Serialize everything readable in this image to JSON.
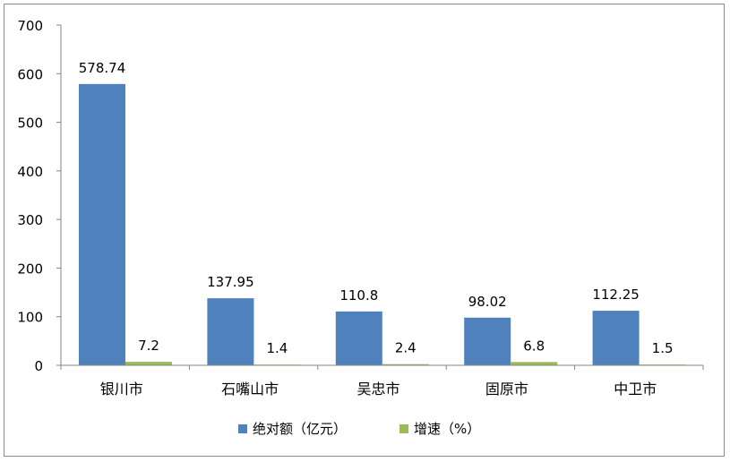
{
  "chart_data": {
    "type": "bar",
    "categories": [
      "银川市",
      "石嘴山市",
      "吴忠市",
      "固原市",
      "中卫市"
    ],
    "series": [
      {
        "name": "绝对额（亿元）",
        "values": [
          578.74,
          137.95,
          110.8,
          98.02,
          112.25
        ],
        "labels": [
          "578.74",
          "137.95",
          "110.8",
          "98.02",
          "112.25"
        ],
        "color": "#4f81bd"
      },
      {
        "name": "增速（%）",
        "values": [
          7.2,
          1.4,
          2.4,
          6.8,
          1.5
        ],
        "labels": [
          "7.2",
          "1.4",
          "2.4",
          "6.8",
          "1.5"
        ],
        "color": "#9bbb59"
      }
    ],
    "ylim": [
      0,
      700
    ],
    "yticks": [
      0,
      100,
      200,
      300,
      400,
      500,
      600,
      700
    ],
    "title": "",
    "xlabel": "",
    "ylabel": "",
    "grid": false,
    "legend_position": "bottom",
    "axis_color": "#868686"
  }
}
